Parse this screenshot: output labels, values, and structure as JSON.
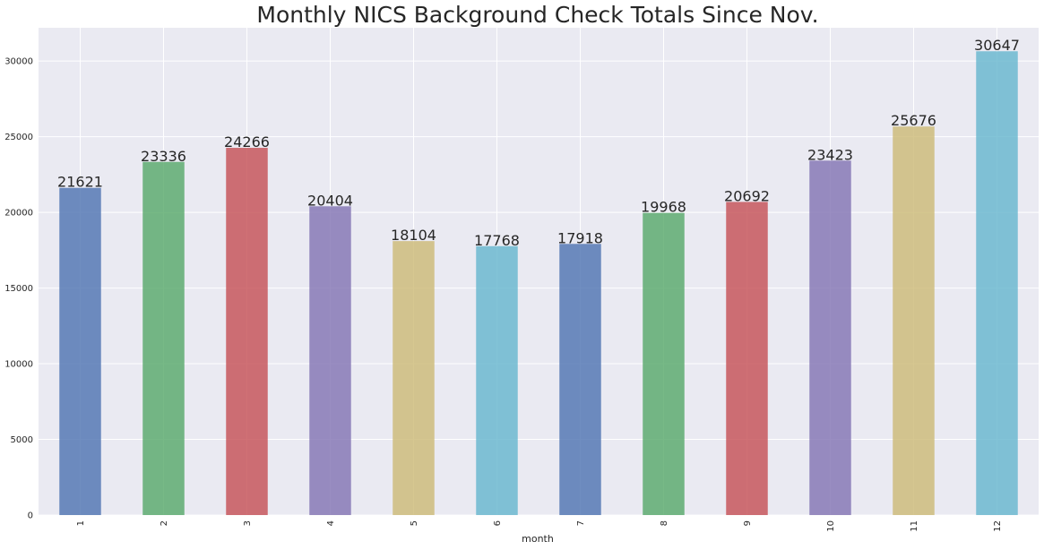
{
  "chart_data": {
    "type": "bar",
    "title": "Monthly NICS Background Check Totals Since Nov.",
    "xlabel": "month",
    "ylabel": "",
    "categories": [
      "1",
      "2",
      "3",
      "4",
      "5",
      "6",
      "7",
      "8",
      "9",
      "10",
      "11",
      "12"
    ],
    "values": [
      21621,
      23336,
      24266,
      20404,
      18104,
      17768,
      17918,
      19968,
      20692,
      23423,
      25676,
      30647
    ],
    "data_labels": [
      "21621",
      "23336",
      "24266",
      "20404",
      "18104",
      "17768",
      "17918",
      "19968",
      "20692",
      "23423",
      "25676",
      "30647"
    ],
    "bar_colors": [
      "#4c72b0",
      "#55a868",
      "#c44e52",
      "#8172b2",
      "#ccb974",
      "#64b5cd",
      "#4c72b0",
      "#55a868",
      "#c44e52",
      "#8172b2",
      "#ccb974",
      "#64b5cd"
    ],
    "ylim": [
      0,
      32200
    ],
    "yticks": [
      0,
      5000,
      10000,
      15000,
      20000,
      25000,
      30000
    ],
    "grid": true,
    "background_color": "#eaeaf2",
    "grid_color": "#ffffff",
    "legend": "none"
  }
}
